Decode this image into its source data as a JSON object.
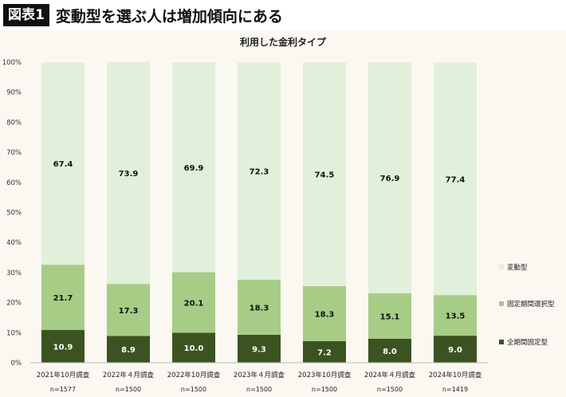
{
  "header": {
    "badge": "図表1",
    "headline": "変動型を選ぶ人は増加傾向にある"
  },
  "chart_data": {
    "type": "bar",
    "stacked": true,
    "percent_stacked": true,
    "title": "利用した金利タイプ",
    "categories": [
      "2021年10月調査",
      "2022年４月調査",
      "2022年10月調査",
      "2023年４月調査",
      "2023年10月調査",
      "2024年４月調査",
      "2024年10月調査"
    ],
    "sample_sizes": [
      "n=1577",
      "n=1500",
      "n=1500",
      "n=1500",
      "n=1500",
      "n=1500",
      "n=1419"
    ],
    "series": [
      {
        "name": "全期間固定型",
        "color": "#3b5320",
        "label_color": "#ffffff",
        "values": [
          10.9,
          8.9,
          10.0,
          9.3,
          7.2,
          8.0,
          9.0
        ]
      },
      {
        "name": "固定期間選択型",
        "color": "#a6cc86",
        "label_color": "#111111",
        "values": [
          21.7,
          17.3,
          20.1,
          18.3,
          18.3,
          15.1,
          13.5
        ]
      },
      {
        "name": "変動型",
        "color": "#e2efda",
        "label_color": "#111111",
        "values": [
          67.4,
          73.9,
          69.9,
          72.3,
          74.5,
          76.9,
          77.4
        ]
      }
    ],
    "y_ticks": [
      "0%",
      "10%",
      "20%",
      "30%",
      "40%",
      "50%",
      "60%",
      "70%",
      "80%",
      "90%",
      "100%"
    ],
    "ylim": [
      0,
      100
    ],
    "grid": false,
    "legend_position": "right",
    "legend_order": [
      "変動型",
      "固定期間選択型",
      "全期間固定型"
    ]
  }
}
